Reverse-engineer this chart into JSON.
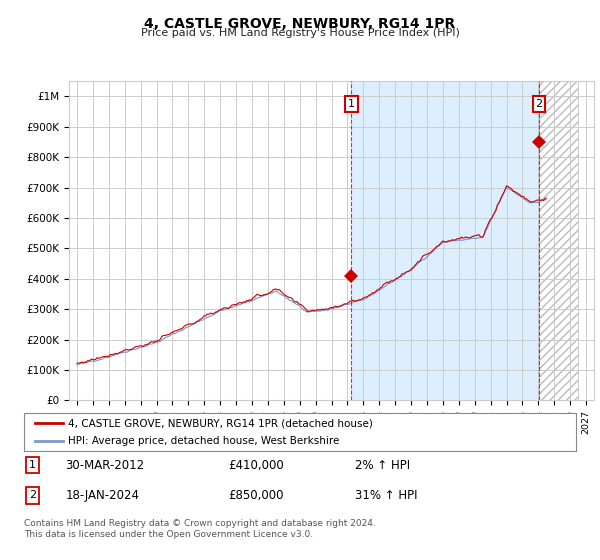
{
  "title": "4, CASTLE GROVE, NEWBURY, RG14 1PR",
  "subtitle": "Price paid vs. HM Land Registry's House Price Index (HPI)",
  "legend_line1": "4, CASTLE GROVE, NEWBURY, RG14 1PR (detached house)",
  "legend_line2": "HPI: Average price, detached house, West Berkshire",
  "annotation1_date": "30-MAR-2012",
  "annotation1_price": "£410,000",
  "annotation1_hpi": "2% ↑ HPI",
  "annotation2_date": "18-JAN-2024",
  "annotation2_price": "£850,000",
  "annotation2_hpi": "31% ↑ HPI",
  "footer": "Contains HM Land Registry data © Crown copyright and database right 2024.\nThis data is licensed under the Open Government Licence v3.0.",
  "hpi_color": "#7799cc",
  "price_color": "#cc0000",
  "annotation_box_color": "#cc0000",
  "background_color": "#ffffff",
  "plot_bg_color": "#ffffff",
  "grid_color": "#cccccc",
  "highlight_bg_color": "#ddeeff",
  "ylim": [
    0,
    1050000
  ],
  "yticks": [
    0,
    100000,
    200000,
    300000,
    400000,
    500000,
    600000,
    700000,
    800000,
    900000,
    1000000
  ],
  "ytick_labels": [
    "£0",
    "£100K",
    "£200K",
    "£300K",
    "£400K",
    "£500K",
    "£600K",
    "£700K",
    "£800K",
    "£900K",
    "£1M"
  ],
  "xlim_start": 1994.5,
  "xlim_end": 2027.5,
  "xticks": [
    1995,
    1996,
    1997,
    1998,
    1999,
    2000,
    2001,
    2002,
    2003,
    2004,
    2005,
    2006,
    2007,
    2008,
    2009,
    2010,
    2011,
    2012,
    2013,
    2014,
    2015,
    2016,
    2017,
    2018,
    2019,
    2020,
    2021,
    2022,
    2023,
    2024,
    2025,
    2026,
    2027
  ],
  "sale1_x": 2012.25,
  "sale1_y": 410000,
  "sale2_x": 2024.05,
  "sale2_y": 850000
}
